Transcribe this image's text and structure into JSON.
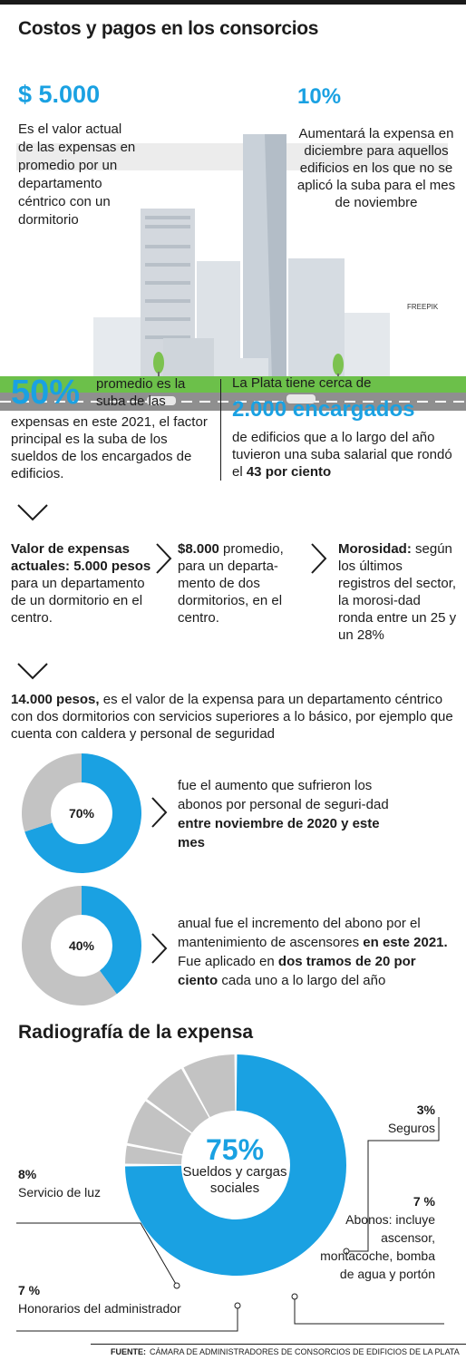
{
  "title": "Costos y pagos en los consorcios",
  "hero": {
    "left_value": "$ 5.000",
    "left_text": "Es el valor actual de las expensas en promedio por un departamento céntrico con un dormitorio",
    "right_value": "10%",
    "right_text": "Aumentará la expensa en diciembre para aquellos edificios en los que no se aplicó la suba para el mes de noviembre",
    "credit": "FREEPIK"
  },
  "stat50": {
    "value": "50%",
    "side": "promedio es la suba de las",
    "text": "expensas en este 2021, el factor principal es la suba de los sueldos de los encargados de edificios."
  },
  "laplata": {
    "lead": "La Plata tiene cerca de",
    "value": "2.000 encargados",
    "text_a": "de edificios que a lo largo del año tuvieron una suba salarial que rondó el ",
    "text_b": "43 por ciento"
  },
  "columns": {
    "a_bold": "Valor de expensas actuales: 5.000 pesos",
    "a_text": " para un departamento de un dormitorio en el centro.",
    "b_bold": "$8.000",
    "b_text": " promedio, para un departa-mento de dos dormitorios, en el centro.",
    "c_bold": "Morosidad:",
    "c_text": " según los últimos registros del sector, la morosi-dad ronda entre un 25 y un 28%"
  },
  "p14": {
    "bold": "14.000 pesos,",
    "text": " es el valor de la expensa para un departamento céntrico con dos dormitorios con servicios superiores a lo básico, por ejemplo que cuenta con caldera y personal de seguridad"
  },
  "rings": {
    "r1_label": "70%",
    "r1_text": "fue el aumento que sufrieron los abonos por personal de seguri-dad ",
    "r1_bold": "entre noviembre de 2020 y este mes",
    "r2_label": "40%",
    "r2_text_a": "anual fue el incremento del abono por el mantenimiento de ascensores ",
    "r2_bold_a": "en este 2021.",
    "r2_text_b": " Fue aplicado en ",
    "r2_bold_b": "dos tramos de 20 por ciento",
    "r2_text_c": " cada uno a lo largo del año"
  },
  "radiografia": {
    "title": "Radiografía de la expensa",
    "center_value": "75%",
    "center_text": "Sueldos y cargas sociales",
    "seguros_pct": "3%",
    "seguros": "Seguros",
    "luz_pct": "8%",
    "luz": "Servicio de luz",
    "abonos_pct": "7 %",
    "abonos": "Abonos: incluye ascensor, montacoche, bomba de agua y portón",
    "honorarios_pct": "7 %",
    "honorarios": "Honorarios del administrador"
  },
  "source": {
    "label": "FUENTE:",
    "text": "CÁMARA DE ADMINISTRADORES DE CONSORCIOS DE EDIFICIOS DE LA PLATA"
  },
  "colors": {
    "accent": "#1aa1e2",
    "gray": "#bdbdbd",
    "green": "#6cc04a",
    "road": "#8f8f8f"
  },
  "chart_data": [
    {
      "type": "pie",
      "title": "",
      "series": [
        {
          "name": "",
          "values": [
            70,
            30
          ]
        }
      ],
      "label": "70%",
      "colors": [
        "#1aa1e2",
        "#c3c3c3"
      ]
    },
    {
      "type": "pie",
      "title": "",
      "series": [
        {
          "name": "",
          "values": [
            40,
            60
          ]
        }
      ],
      "label": "40%",
      "colors": [
        "#1aa1e2",
        "#c3c3c3"
      ]
    },
    {
      "type": "pie",
      "title": "Radiografía de la expensa",
      "categories": [
        "Sueldos y cargas sociales",
        "Seguros",
        "Abonos: incluye ascensor, montacoche, bomba de agua y portón",
        "Honorarios del administrador",
        "Servicio de luz"
      ],
      "values": [
        75,
        3,
        7,
        7,
        8
      ],
      "colors": [
        "#1aa1e2",
        "#c3c3c3",
        "#c3c3c3",
        "#c3c3c3",
        "#c3c3c3"
      ]
    }
  ]
}
